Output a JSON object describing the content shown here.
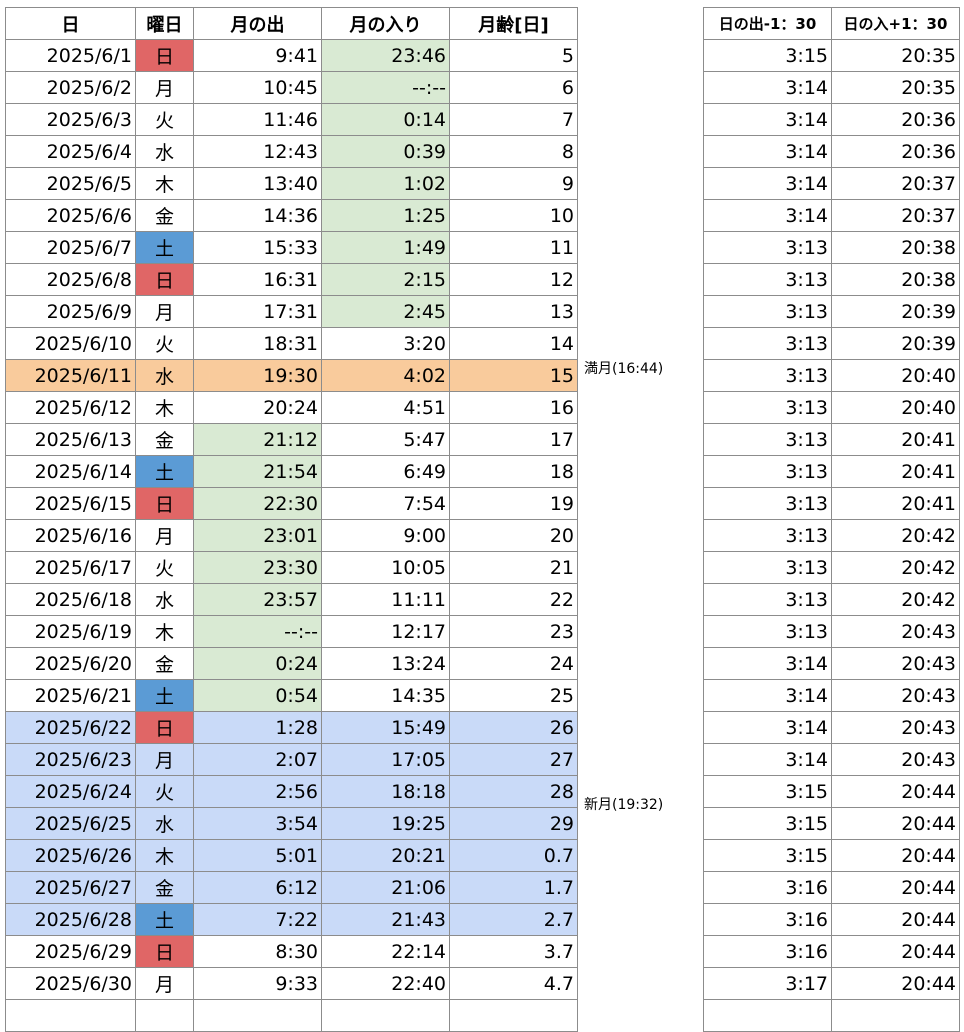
{
  "colors": {
    "sunday": "#e06666",
    "saturday": "#5b9bd5",
    "green_cell": "#d9ead3",
    "full_moon_row": "#f9cb9c",
    "new_moon_period": "#c9daf8"
  },
  "main_table": {
    "headers": [
      "日",
      "曜日",
      "月の出",
      "月の入り",
      "月齢[日]"
    ],
    "rows": [
      {
        "date": "2025/6/1",
        "dow": "日",
        "rise": "9:41",
        "set": "23:46",
        "age": "5",
        "dow_hl": "sun",
        "rise_hl": false,
        "set_hl": true,
        "row_hl": ""
      },
      {
        "date": "2025/6/2",
        "dow": "月",
        "rise": "10:45",
        "set": "--:--",
        "age": "6",
        "dow_hl": "",
        "rise_hl": false,
        "set_hl": true,
        "row_hl": ""
      },
      {
        "date": "2025/6/3",
        "dow": "火",
        "rise": "11:46",
        "set": "0:14",
        "age": "7",
        "dow_hl": "",
        "rise_hl": false,
        "set_hl": true,
        "row_hl": ""
      },
      {
        "date": "2025/6/4",
        "dow": "水",
        "rise": "12:43",
        "set": "0:39",
        "age": "8",
        "dow_hl": "",
        "rise_hl": false,
        "set_hl": true,
        "row_hl": ""
      },
      {
        "date": "2025/6/5",
        "dow": "木",
        "rise": "13:40",
        "set": "1:02",
        "age": "9",
        "dow_hl": "",
        "rise_hl": false,
        "set_hl": true,
        "row_hl": ""
      },
      {
        "date": "2025/6/6",
        "dow": "金",
        "rise": "14:36",
        "set": "1:25",
        "age": "10",
        "dow_hl": "",
        "rise_hl": false,
        "set_hl": true,
        "row_hl": ""
      },
      {
        "date": "2025/6/7",
        "dow": "土",
        "rise": "15:33",
        "set": "1:49",
        "age": "11",
        "dow_hl": "sat",
        "rise_hl": false,
        "set_hl": true,
        "row_hl": ""
      },
      {
        "date": "2025/6/8",
        "dow": "日",
        "rise": "16:31",
        "set": "2:15",
        "age": "12",
        "dow_hl": "sun",
        "rise_hl": false,
        "set_hl": true,
        "row_hl": ""
      },
      {
        "date": "2025/6/9",
        "dow": "月",
        "rise": "17:31",
        "set": "2:45",
        "age": "13",
        "dow_hl": "",
        "rise_hl": false,
        "set_hl": true,
        "row_hl": ""
      },
      {
        "date": "2025/6/10",
        "dow": "火",
        "rise": "18:31",
        "set": "3:20",
        "age": "14",
        "dow_hl": "",
        "rise_hl": false,
        "set_hl": false,
        "row_hl": ""
      },
      {
        "date": "2025/6/11",
        "dow": "水",
        "rise": "19:30",
        "set": "4:02",
        "age": "15",
        "dow_hl": "",
        "rise_hl": false,
        "set_hl": false,
        "row_hl": "full"
      },
      {
        "date": "2025/6/12",
        "dow": "木",
        "rise": "20:24",
        "set": "4:51",
        "age": "16",
        "dow_hl": "",
        "rise_hl": false,
        "set_hl": false,
        "row_hl": ""
      },
      {
        "date": "2025/6/13",
        "dow": "金",
        "rise": "21:12",
        "set": "5:47",
        "age": "17",
        "dow_hl": "",
        "rise_hl": true,
        "set_hl": false,
        "row_hl": ""
      },
      {
        "date": "2025/6/14",
        "dow": "土",
        "rise": "21:54",
        "set": "6:49",
        "age": "18",
        "dow_hl": "sat",
        "rise_hl": true,
        "set_hl": false,
        "row_hl": ""
      },
      {
        "date": "2025/6/15",
        "dow": "日",
        "rise": "22:30",
        "set": "7:54",
        "age": "19",
        "dow_hl": "sun",
        "rise_hl": true,
        "set_hl": false,
        "row_hl": ""
      },
      {
        "date": "2025/6/16",
        "dow": "月",
        "rise": "23:01",
        "set": "9:00",
        "age": "20",
        "dow_hl": "",
        "rise_hl": true,
        "set_hl": false,
        "row_hl": ""
      },
      {
        "date": "2025/6/17",
        "dow": "火",
        "rise": "23:30",
        "set": "10:05",
        "age": "21",
        "dow_hl": "",
        "rise_hl": true,
        "set_hl": false,
        "row_hl": ""
      },
      {
        "date": "2025/6/18",
        "dow": "水",
        "rise": "23:57",
        "set": "11:11",
        "age": "22",
        "dow_hl": "",
        "rise_hl": true,
        "set_hl": false,
        "row_hl": ""
      },
      {
        "date": "2025/6/19",
        "dow": "木",
        "rise": "--:--",
        "set": "12:17",
        "age": "23",
        "dow_hl": "",
        "rise_hl": true,
        "set_hl": false,
        "row_hl": ""
      },
      {
        "date": "2025/6/20",
        "dow": "金",
        "rise": "0:24",
        "set": "13:24",
        "age": "24",
        "dow_hl": "",
        "rise_hl": true,
        "set_hl": false,
        "row_hl": ""
      },
      {
        "date": "2025/6/21",
        "dow": "土",
        "rise": "0:54",
        "set": "14:35",
        "age": "25",
        "dow_hl": "sat",
        "rise_hl": true,
        "set_hl": false,
        "row_hl": ""
      },
      {
        "date": "2025/6/22",
        "dow": "日",
        "rise": "1:28",
        "set": "15:49",
        "age": "26",
        "dow_hl": "sun",
        "rise_hl": false,
        "set_hl": false,
        "row_hl": "new"
      },
      {
        "date": "2025/6/23",
        "dow": "月",
        "rise": "2:07",
        "set": "17:05",
        "age": "27",
        "dow_hl": "",
        "rise_hl": false,
        "set_hl": false,
        "row_hl": "new"
      },
      {
        "date": "2025/6/24",
        "dow": "火",
        "rise": "2:56",
        "set": "18:18",
        "age": "28",
        "dow_hl": "",
        "rise_hl": false,
        "set_hl": false,
        "row_hl": "new"
      },
      {
        "date": "2025/6/25",
        "dow": "水",
        "rise": "3:54",
        "set": "19:25",
        "age": "29",
        "dow_hl": "",
        "rise_hl": false,
        "set_hl": false,
        "row_hl": "new"
      },
      {
        "date": "2025/6/26",
        "dow": "木",
        "rise": "5:01",
        "set": "20:21",
        "age": "0.7",
        "dow_hl": "",
        "rise_hl": false,
        "set_hl": false,
        "row_hl": "new"
      },
      {
        "date": "2025/6/27",
        "dow": "金",
        "rise": "6:12",
        "set": "21:06",
        "age": "1.7",
        "dow_hl": "",
        "rise_hl": false,
        "set_hl": false,
        "row_hl": "new"
      },
      {
        "date": "2025/6/28",
        "dow": "土",
        "rise": "7:22",
        "set": "21:43",
        "age": "2.7",
        "dow_hl": "sat",
        "rise_hl": false,
        "set_hl": false,
        "row_hl": "new"
      },
      {
        "date": "2025/6/29",
        "dow": "日",
        "rise": "8:30",
        "set": "22:14",
        "age": "3.7",
        "dow_hl": "sun",
        "rise_hl": false,
        "set_hl": false,
        "row_hl": ""
      },
      {
        "date": "2025/6/30",
        "dow": "月",
        "rise": "9:33",
        "set": "22:40",
        "age": "4.7",
        "dow_hl": "",
        "rise_hl": false,
        "set_hl": false,
        "row_hl": ""
      }
    ]
  },
  "notes": {
    "full_moon": "満月(16:44)",
    "new_moon": "新月(19:32)"
  },
  "side_table": {
    "headers": [
      "日の出-1：30",
      "日の入+1：30"
    ],
    "rows": [
      [
        "3:15",
        "20:35"
      ],
      [
        "3:14",
        "20:35"
      ],
      [
        "3:14",
        "20:36"
      ],
      [
        "3:14",
        "20:36"
      ],
      [
        "3:14",
        "20:37"
      ],
      [
        "3:14",
        "20:37"
      ],
      [
        "3:13",
        "20:38"
      ],
      [
        "3:13",
        "20:38"
      ],
      [
        "3:13",
        "20:39"
      ],
      [
        "3:13",
        "20:39"
      ],
      [
        "3:13",
        "20:40"
      ],
      [
        "3:13",
        "20:40"
      ],
      [
        "3:13",
        "20:41"
      ],
      [
        "3:13",
        "20:41"
      ],
      [
        "3:13",
        "20:41"
      ],
      [
        "3:13",
        "20:42"
      ],
      [
        "3:13",
        "20:42"
      ],
      [
        "3:13",
        "20:42"
      ],
      [
        "3:13",
        "20:43"
      ],
      [
        "3:14",
        "20:43"
      ],
      [
        "3:14",
        "20:43"
      ],
      [
        "3:14",
        "20:43"
      ],
      [
        "3:14",
        "20:43"
      ],
      [
        "3:15",
        "20:44"
      ],
      [
        "3:15",
        "20:44"
      ],
      [
        "3:15",
        "20:44"
      ],
      [
        "3:16",
        "20:44"
      ],
      [
        "3:16",
        "20:44"
      ],
      [
        "3:16",
        "20:44"
      ],
      [
        "3:17",
        "20:44"
      ]
    ]
  }
}
